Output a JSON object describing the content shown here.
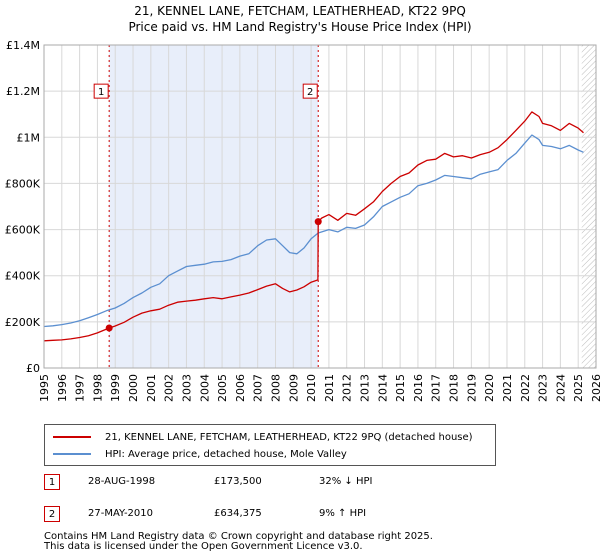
{
  "title_line1": "21, KENNEL LANE, FETCHAM, LEATHERHEAD, KT22 9PQ",
  "title_line2": "Price paid vs. HM Land Registry's House Price Index (HPI)",
  "colors": {
    "property": "#cc0000",
    "hpi": "#5b8fd0",
    "shade": "#e8eefa",
    "grid": "#d8d8d8",
    "marker_border": "#cc0000"
  },
  "chart_data": {
    "type": "line",
    "xlabel": "",
    "ylabel": "",
    "xlim": [
      1995,
      2026
    ],
    "ylim": [
      0,
      1400000
    ],
    "y_ticks": [
      {
        "value": 0,
        "label": "£0"
      },
      {
        "value": 200000,
        "label": "£200K"
      },
      {
        "value": 400000,
        "label": "£400K"
      },
      {
        "value": 600000,
        "label": "£600K"
      },
      {
        "value": 800000,
        "label": "£800K"
      },
      {
        "value": 1000000,
        "label": "£1M"
      },
      {
        "value": 1200000,
        "label": "£1.2M"
      },
      {
        "value": 1400000,
        "label": "£1.4M"
      }
    ],
    "x_ticks": [
      "1995",
      "1996",
      "1997",
      "1998",
      "1999",
      "2000",
      "2001",
      "2002",
      "2003",
      "2004",
      "2005",
      "2006",
      "2007",
      "2008",
      "2009",
      "2010",
      "2011",
      "2012",
      "2013",
      "2014",
      "2015",
      "2016",
      "2017",
      "2018",
      "2019",
      "2020",
      "2021",
      "2022",
      "2023",
      "2024",
      "2025",
      "2026"
    ],
    "shaded_period": [
      1998.66,
      2010.4
    ],
    "hatched_from": 2025.2,
    "series": [
      {
        "name": "21, KENNEL LANE, FETCHAM, LEATHERHEAD, KT22 9PQ (detached house)",
        "color": "#cc0000",
        "x": [
          1995,
          1995.5,
          1996,
          1996.5,
          1997,
          1997.5,
          1998,
          1998.66,
          1999,
          1999.5,
          2000,
          2000.5,
          2001,
          2001.5,
          2002,
          2002.5,
          2003,
          2003.5,
          2004,
          2004.5,
          2005,
          2005.5,
          2006,
          2006.5,
          2007,
          2007.5,
          2008,
          2008.4,
          2008.8,
          2009.2,
          2009.6,
          2010,
          2010.38,
          2010.4,
          2010.6,
          2011,
          2011.5,
          2012,
          2012.5,
          2013,
          2013.5,
          2014,
          2014.5,
          2015,
          2015.5,
          2016,
          2016.5,
          2017,
          2017.5,
          2018,
          2018.5,
          2019,
          2019.5,
          2020,
          2020.5,
          2021,
          2021.5,
          2022,
          2022.4,
          2022.8,
          2023,
          2023.5,
          2024,
          2024.5,
          2025,
          2025.3
        ],
        "y": [
          118000,
          120000,
          122000,
          126000,
          132000,
          140000,
          152000,
          173500,
          182000,
          198000,
          220000,
          238000,
          248000,
          255000,
          272000,
          285000,
          290000,
          294000,
          300000,
          305000,
          300000,
          308000,
          316000,
          325000,
          340000,
          355000,
          365000,
          345000,
          330000,
          338000,
          352000,
          372000,
          382000,
          634375,
          650000,
          665000,
          640000,
          670000,
          662000,
          690000,
          720000,
          765000,
          800000,
          830000,
          845000,
          880000,
          900000,
          905000,
          930000,
          915000,
          920000,
          910000,
          925000,
          935000,
          955000,
          990000,
          1030000,
          1070000,
          1110000,
          1090000,
          1060000,
          1050000,
          1030000,
          1060000,
          1040000,
          1020000
        ]
      },
      {
        "name": "HPI: Average price, detached house, Mole Valley",
        "color": "#5b8fd0",
        "x": [
          1995,
          1995.5,
          1996,
          1996.5,
          1997,
          1997.5,
          1998,
          1998.5,
          1999,
          1999.5,
          2000,
          2000.5,
          2001,
          2001.5,
          2002,
          2002.5,
          2003,
          2003.5,
          2004,
          2004.5,
          2005,
          2005.5,
          2006,
          2006.5,
          2007,
          2007.5,
          2008,
          2008.4,
          2008.8,
          2009.2,
          2009.6,
          2010,
          2010.4,
          2011,
          2011.5,
          2012,
          2012.5,
          2013,
          2013.5,
          2014,
          2014.5,
          2015,
          2015.5,
          2016,
          2016.5,
          2017,
          2017.5,
          2018,
          2018.5,
          2019,
          2019.5,
          2020,
          2020.5,
          2021,
          2021.5,
          2022,
          2022.4,
          2022.8,
          2023,
          2023.5,
          2024,
          2024.5,
          2025,
          2025.3
        ],
        "y": [
          180000,
          183000,
          188000,
          195000,
          205000,
          218000,
          232000,
          248000,
          260000,
          280000,
          305000,
          325000,
          350000,
          365000,
          400000,
          420000,
          440000,
          445000,
          450000,
          460000,
          462000,
          470000,
          485000,
          495000,
          530000,
          555000,
          560000,
          530000,
          500000,
          495000,
          520000,
          560000,
          585000,
          600000,
          590000,
          610000,
          605000,
          620000,
          655000,
          700000,
          720000,
          740000,
          755000,
          790000,
          800000,
          815000,
          835000,
          830000,
          825000,
          820000,
          840000,
          850000,
          860000,
          900000,
          930000,
          975000,
          1010000,
          990000,
          965000,
          960000,
          950000,
          965000,
          945000,
          935000
        ]
      }
    ],
    "markers": [
      {
        "label": "1",
        "x": 1998.66,
        "y": 173500,
        "label_y": 1200000
      },
      {
        "label": "2",
        "x": 2010.4,
        "y": 634375,
        "label_y": 1200000
      }
    ]
  },
  "legend": {
    "property_label": "21, KENNEL LANE, FETCHAM, LEATHERHEAD, KT22 9PQ (detached house)",
    "hpi_label": "HPI: Average price, detached house, Mole Valley"
  },
  "sales": [
    {
      "num": "1",
      "date": "28-AUG-1998",
      "price": "£173,500",
      "hpi": "32% ↓ HPI"
    },
    {
      "num": "2",
      "date": "27-MAY-2010",
      "price": "£634,375",
      "hpi": "9% ↑ HPI"
    }
  ],
  "footer_line1": "Contains HM Land Registry data © Crown copyright and database right 2025.",
  "footer_line2": "This data is licensed under the Open Government Licence v3.0."
}
